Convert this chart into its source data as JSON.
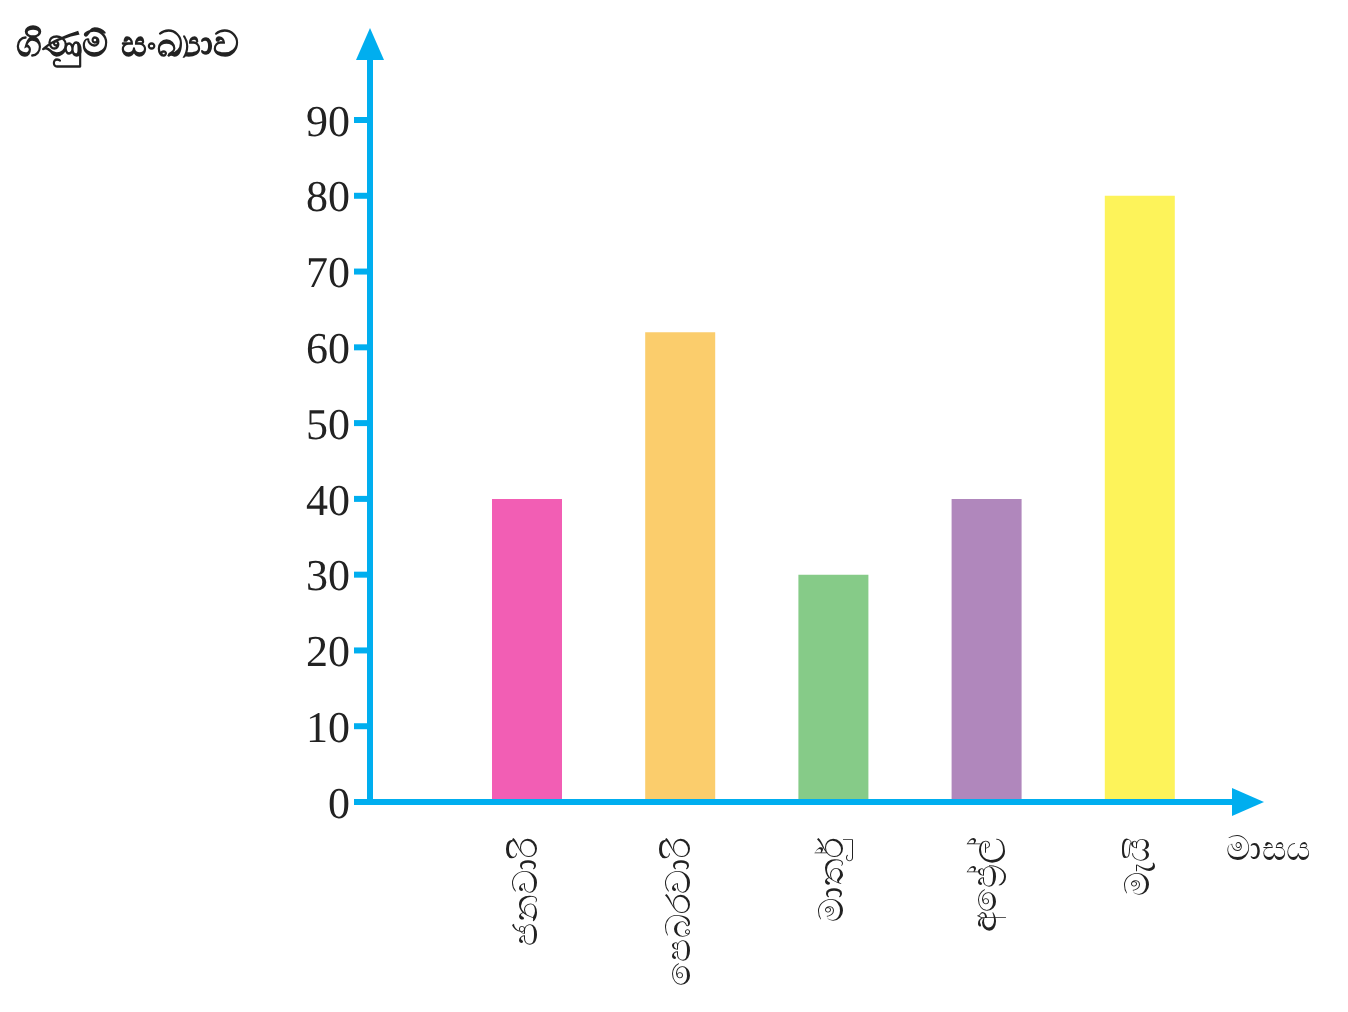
{
  "chart_data": {
    "type": "bar",
    "ylabel": "ගිණුම් සංඛ්‍යාව",
    "xlabel": "මාසය",
    "categories": [
      "ජනවාරි",
      "පෙබරවාරි",
      "මාර්තු",
      "අප්‍රේල්",
      "මැයි"
    ],
    "values": [
      40,
      62,
      30,
      40,
      80
    ],
    "colors": [
      "#f25eb4",
      "#fbcd6c",
      "#86cb88",
      "#b087bc",
      "#fdf35a"
    ],
    "ylim": [
      0,
      90
    ],
    "yticks": [
      0,
      10,
      20,
      30,
      40,
      50,
      60,
      70,
      80,
      90
    ],
    "grid": false
  }
}
